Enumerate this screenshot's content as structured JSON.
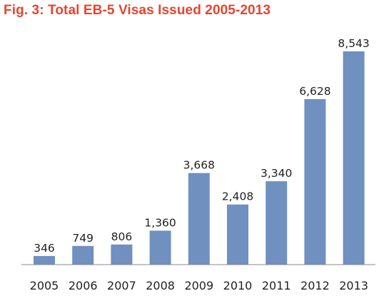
{
  "chart_data": {
    "type": "bar",
    "title": "Fig. 3: Total EB-5 Visas Issued 2005-2013",
    "categories": [
      "2005",
      "2006",
      "2007",
      "2008",
      "2009",
      "2010",
      "2011",
      "2012",
      "2013"
    ],
    "values": [
      346,
      749,
      806,
      1360,
      3668,
      2408,
      3340,
      6628,
      8543
    ],
    "value_labels": [
      "346",
      "749",
      "806",
      "1,360",
      "3,668",
      "2,408",
      "3,340",
      "6,628",
      "8,543"
    ],
    "xlabel": "",
    "ylabel": "",
    "ylim": [
      0,
      8543
    ],
    "grid": false,
    "legend": "none",
    "colors": {
      "bar": "#7090bf",
      "title": "#e8442e",
      "axis": "#888888",
      "text": "#222222"
    }
  }
}
